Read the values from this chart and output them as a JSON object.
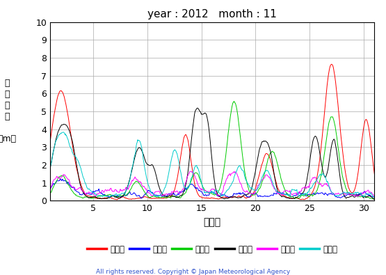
{
  "title": "year : 2012   month : 11",
  "xlabel": "（日）",
  "ylabel_chars": [
    "有",
    "義",
    "波",
    "高",
    "",
    "（m）"
  ],
  "xlim": [
    1,
    31
  ],
  "ylim": [
    0,
    10
  ],
  "yticks": [
    0,
    1,
    2,
    3,
    4,
    5,
    6,
    7,
    8,
    9,
    10
  ],
  "xticks": [
    5,
    10,
    15,
    20,
    25,
    30
  ],
  "copyright": "All rights reserved. Copyright © Japan Meteorological Agency",
  "legend_labels": [
    "上ノ国",
    "江ノ島",
    "石廀崎",
    "経ヶ峬",
    "生月島",
    "屋久島"
  ],
  "line_colors": [
    "#ff0000",
    "#0000ff",
    "#00cc00",
    "#000000",
    "#ff00ff",
    "#00cccc"
  ],
  "lw": 0.7,
  "background_color": "#ffffff",
  "grid_color": "#aaaaaa"
}
